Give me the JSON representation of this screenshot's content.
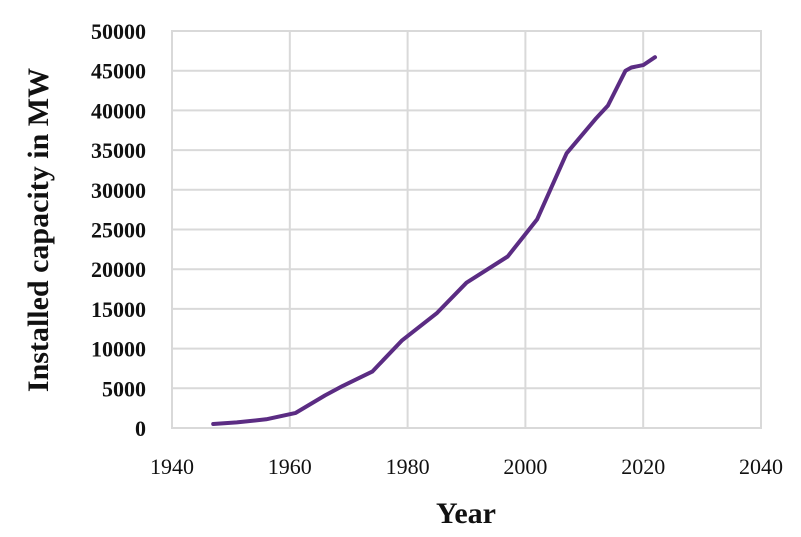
{
  "chart_data": {
    "type": "line",
    "title": "",
    "xlabel": "Year",
    "ylabel": "Installed capacity in MW",
    "xlim": [
      1940,
      2040
    ],
    "ylim": [
      0,
      50000
    ],
    "x_ticks": [
      "1940",
      "1960",
      "1980",
      "2000",
      "2020",
      "2040"
    ],
    "y_ticks": [
      "0",
      "5000",
      "10000",
      "15000",
      "20000",
      "25000",
      "30000",
      "35000",
      "40000",
      "45000",
      "50000"
    ],
    "grid": true,
    "legend": "none",
    "series": [
      {
        "color": "#5b2c83",
        "x": [
          1947,
          1951,
          1956,
          1961,
          1966,
          1969,
          1974,
          1979,
          1985,
          1990,
          1997,
          2002,
          2007,
          2012,
          2014,
          2017,
          2018,
          2020,
          2022
        ],
        "y": [
          500,
          700,
          1100,
          1900,
          4100,
          5300,
          7100,
          11000,
          14500,
          18300,
          21600,
          26300,
          34600,
          39000,
          40600,
          45000,
          45400,
          45700,
          46700
        ]
      }
    ]
  }
}
